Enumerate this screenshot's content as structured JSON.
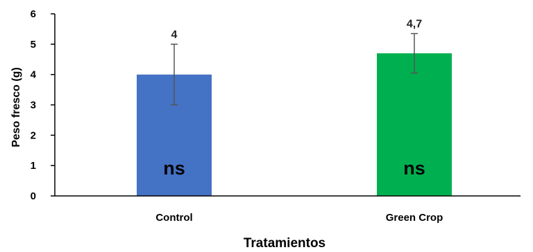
{
  "chart_data": {
    "type": "bar",
    "title": "",
    "xlabel": "Tratamientos",
    "ylabel": "Peso fresco (g)",
    "ylim": [
      0,
      6
    ],
    "yticks": [
      "0",
      "1",
      "2",
      "3",
      "4",
      "5",
      "6"
    ],
    "grid": false,
    "legend": "none",
    "categories": [
      "Control",
      "Green Crop"
    ],
    "values": [
      4.0,
      4.7
    ],
    "error_bars": [
      1.0,
      0.65
    ],
    "data_labels": [
      "4",
      "4,7"
    ],
    "annotations": [
      "ns",
      "ns"
    ],
    "colors": [
      "#4472C4",
      "#00B050"
    ]
  }
}
